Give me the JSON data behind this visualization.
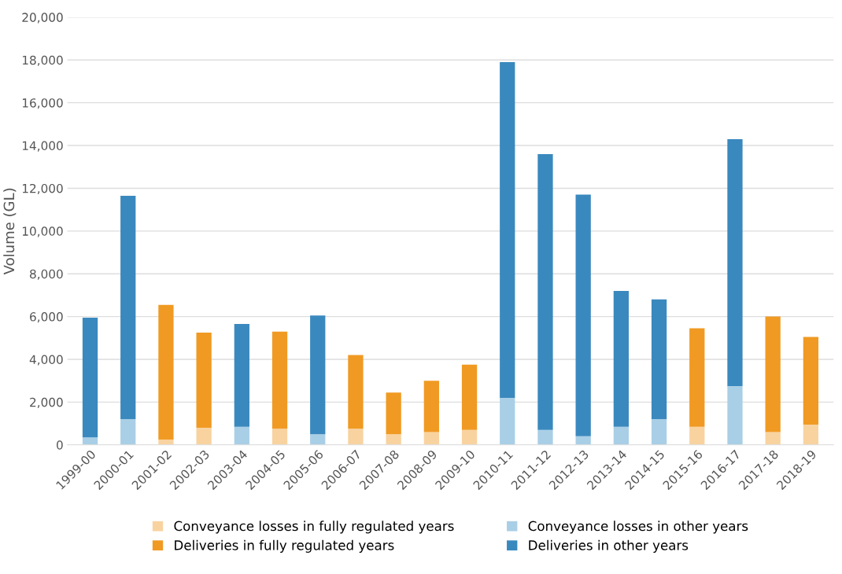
{
  "chart_data": {
    "type": "bar",
    "stacked": true,
    "ylabel": "Volume (GL)",
    "categories": [
      "1999-00",
      "2000-01",
      "2001-02",
      "2002-03",
      "2003-04",
      "2004-05",
      "2005-06",
      "2006-07",
      "2007-08",
      "2008-09",
      "2009-10",
      "2010-11",
      "2011-12",
      "2012-13",
      "2013-14",
      "2014-15",
      "2015-16",
      "2016-17",
      "2017-18",
      "2018-19"
    ],
    "series": [
      {
        "name": "Conveyance losses in fully regulated years",
        "color": "#f8d3a0",
        "values": [
          null,
          null,
          250,
          800,
          null,
          750,
          null,
          750,
          500,
          600,
          700,
          null,
          null,
          null,
          null,
          null,
          850,
          null,
          600,
          950
        ]
      },
      {
        "name": "Conveyance losses in other years",
        "color": "#a9cfe6",
        "values": [
          350,
          1200,
          null,
          null,
          850,
          null,
          500,
          null,
          null,
          null,
          null,
          2200,
          700,
          400,
          850,
          1200,
          null,
          2750,
          null,
          null
        ]
      },
      {
        "name": "Deliveries in fully regulated years",
        "color": "#f09a23",
        "values": [
          null,
          null,
          6300,
          4450,
          null,
          4550,
          null,
          3450,
          1950,
          2400,
          3050,
          null,
          null,
          null,
          null,
          null,
          4600,
          null,
          5400,
          4100
        ]
      },
      {
        "name": "Deliveries in other years",
        "color": "#3a89be",
        "values": [
          5600,
          10450,
          null,
          null,
          4800,
          null,
          5550,
          null,
          null,
          null,
          null,
          15700,
          12900,
          11300,
          6350,
          5600,
          null,
          11550,
          null,
          null
        ]
      }
    ],
    "ylim": [
      0,
      20000
    ],
    "yticks": [
      {
        "value": 0,
        "label": "0"
      },
      {
        "value": 2000,
        "label": "2,000"
      },
      {
        "value": 4000,
        "label": "4,000"
      },
      {
        "value": 6000,
        "label": "6,000"
      },
      {
        "value": 8000,
        "label": "8,000"
      },
      {
        "value": 10000,
        "label": "10,000"
      },
      {
        "value": 12000,
        "label": "12,000"
      },
      {
        "value": 14000,
        "label": "14,000"
      },
      {
        "value": 16000,
        "label": "16,000"
      },
      {
        "value": 18000,
        "label": "18,000"
      },
      {
        "value": 20000,
        "label": "20,000"
      }
    ],
    "grid": "y",
    "legend": "bottom"
  }
}
